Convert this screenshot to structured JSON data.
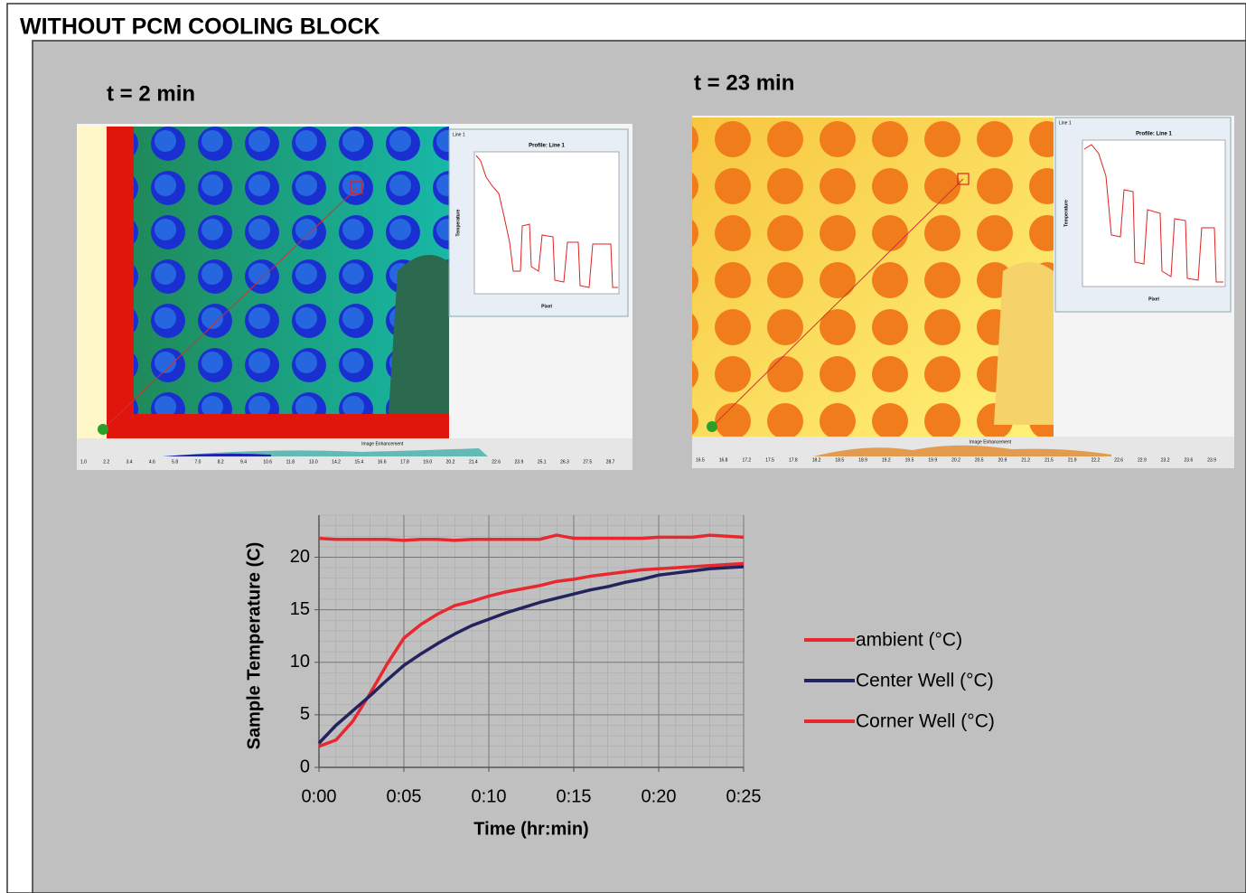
{
  "header": {
    "title": "WITHOUT  PCM COOLING BLOCK"
  },
  "images": [
    {
      "label": "t = 2 min",
      "window_title": "Line 1",
      "profile_title": "Profile: Line 1",
      "y_axis": "Temperature",
      "x_axis": "Pixel",
      "enhancement": "Image Enhancement",
      "scale": [
        "1.0",
        "2.2",
        "3.4",
        "4.6",
        "5.8",
        "7.0",
        "8.2",
        "9.4",
        "10.6",
        "11.8",
        "13.0",
        "14.2",
        "15.4",
        "16.6",
        "17.8",
        "19.0",
        "20.2",
        "21.4",
        "22.6",
        "23.9",
        "25.1",
        "26.3",
        "27.5",
        "28.7"
      ]
    },
    {
      "label": "t = 23 min",
      "window_title": "Line 1",
      "profile_title": "Profile: Line 1",
      "y_axis": "Temperature",
      "x_axis": "Pixel",
      "enhancement": "Image Enhancement",
      "scale": [
        "16.5",
        "16.8",
        "17.2",
        "17.5",
        "17.8",
        "18.2",
        "18.5",
        "18.9",
        "19.2",
        "19.5",
        "19.9",
        "20.2",
        "20.5",
        "20.9",
        "21.2",
        "21.5",
        "21.9",
        "22.2",
        "22.6",
        "22.9",
        "23.2",
        "23.6",
        "23.9"
      ]
    }
  ],
  "chart_data": {
    "type": "line",
    "x_label": "Time (hr:min)",
    "y_label": "Sample Temperature (C)",
    "x": [
      0,
      1,
      2,
      3,
      4,
      5,
      6,
      7,
      8,
      9,
      10,
      11,
      12,
      13,
      14,
      15,
      16,
      17,
      18,
      19,
      20,
      21,
      22,
      23,
      24,
      25
    ],
    "series": [
      {
        "name": "ambient (°C)",
        "color": "#e8282f",
        "values": [
          21.8,
          21.7,
          21.7,
          21.7,
          21.7,
          21.6,
          21.7,
          21.7,
          21.6,
          21.7,
          21.7,
          21.7,
          21.7,
          21.7,
          22.1,
          21.8,
          21.8,
          21.8,
          21.8,
          21.8,
          21.9,
          21.9,
          21.9,
          22.1,
          22.0,
          21.9
        ]
      },
      {
        "name": "Center Well (°C)",
        "color": "#23235e",
        "values": [
          2.3,
          4.0,
          5.4,
          6.8,
          8.3,
          9.7,
          10.8,
          11.8,
          12.7,
          13.5,
          14.1,
          14.7,
          15.2,
          15.7,
          16.1,
          16.5,
          16.9,
          17.2,
          17.6,
          17.9,
          18.3,
          18.5,
          18.7,
          18.9,
          19.0,
          19.1
        ]
      },
      {
        "name": "Corner Well (°C)",
        "color": "#e8282f",
        "values": [
          2.0,
          2.6,
          4.4,
          7.0,
          9.8,
          12.3,
          13.6,
          14.6,
          15.4,
          15.8,
          16.3,
          16.7,
          17.0,
          17.3,
          17.7,
          17.9,
          18.2,
          18.4,
          18.6,
          18.8,
          18.9,
          19.0,
          19.1,
          19.2,
          19.3,
          19.4
        ]
      }
    ],
    "xlim": [
      0,
      25
    ],
    "xticks": [
      {
        "value": 0,
        "label": "0:00"
      },
      {
        "value": 5,
        "label": "0:05"
      },
      {
        "value": 10,
        "label": "0:10"
      },
      {
        "value": 15,
        "label": "0:15"
      },
      {
        "value": 20,
        "label": "0:20"
      },
      {
        "value": 25,
        "label": "0:25"
      }
    ],
    "ylim": [
      0,
      24
    ],
    "yticks": [
      0,
      5,
      10,
      15,
      20
    ],
    "grid": true,
    "minor_grid_step": [
      1,
      1
    ],
    "legend": "right"
  }
}
